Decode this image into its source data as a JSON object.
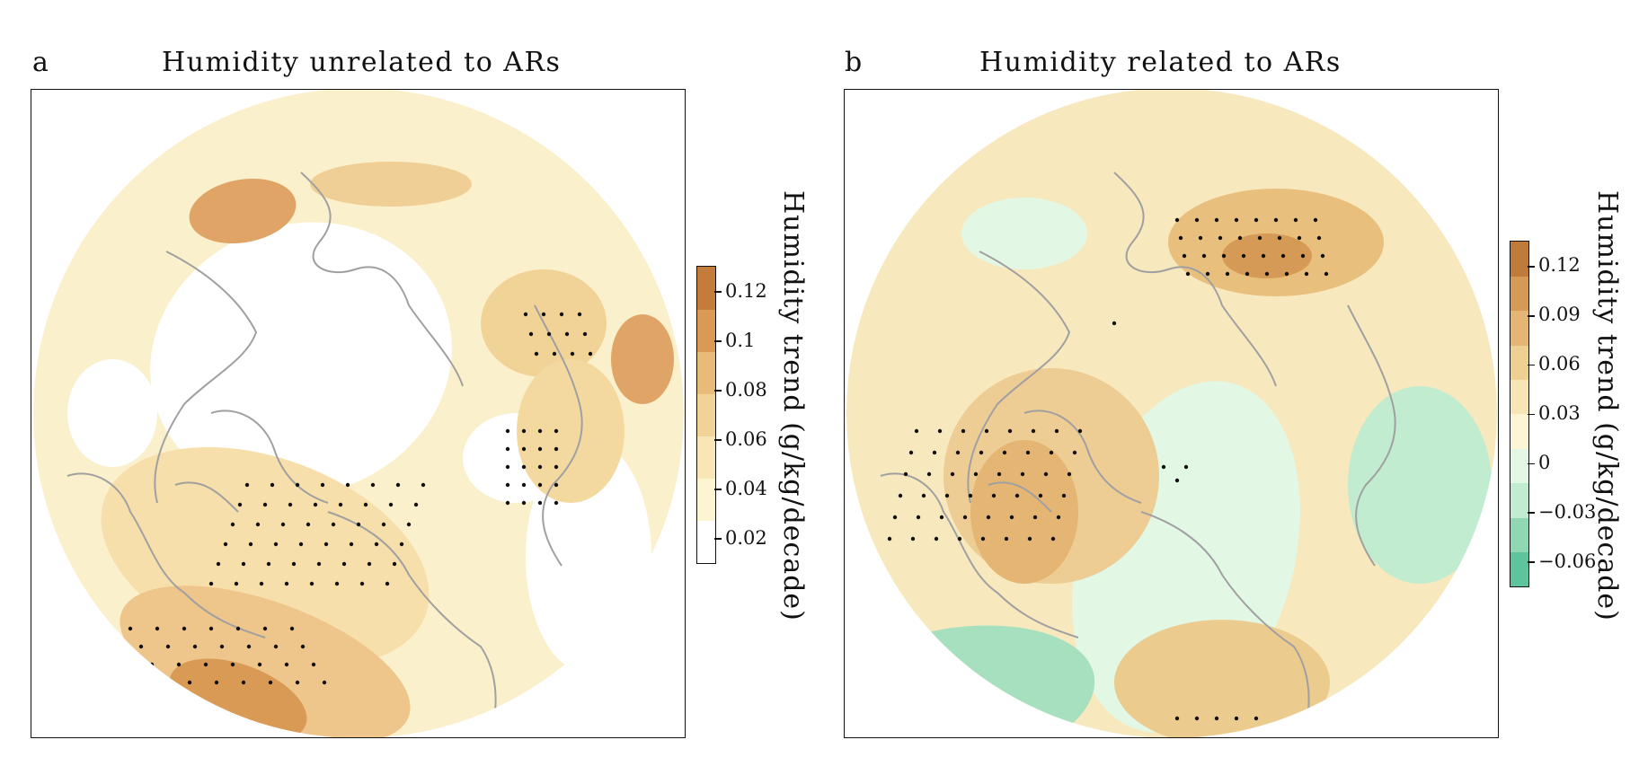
{
  "chart_data": [
    {
      "type": "heatmap",
      "panel_letter": "a",
      "title": "Humidity unrelated to ARs",
      "colorbar": {
        "label": "Humidity trend (g/kg/decade)",
        "ticks": [
          "0.02",
          "0.04",
          "0.06",
          "0.08",
          "0.1",
          "0.12"
        ],
        "tick_values": [
          0.02,
          0.04,
          0.06,
          0.08,
          0.1,
          0.12
        ],
        "range": [
          0.01,
          0.13
        ],
        "colors": [
          "#ffffff",
          "#fdf4d2",
          "#f9e6b7",
          "#f1d398",
          "#e8bc78",
          "#d99a56",
          "#c47c3c"
        ]
      },
      "projection": "north-polar-stereographic",
      "stippling": "dots mark statistically significant trends"
    },
    {
      "type": "heatmap",
      "panel_letter": "b",
      "title": "Humidity related to ARs",
      "colorbar": {
        "label": "Humidity trend (g/kg/decade)",
        "ticks": [
          "−0.06",
          "−0.03",
          "0",
          "0.03",
          "0.06",
          "0.09",
          "0.12"
        ],
        "tick_values": [
          -0.06,
          -0.03,
          0,
          0.03,
          0.06,
          0.09,
          0.12
        ],
        "range": [
          -0.075,
          0.135
        ],
        "colors": [
          "#5ec49b",
          "#8fd8b1",
          "#c2ecd0",
          "#e3f7e5",
          "#fdf6d6",
          "#f7e5b5",
          "#efd093",
          "#e4b573",
          "#d59a55",
          "#c07a39"
        ]
      },
      "projection": "north-polar-stereographic",
      "stippling": "dots mark statistically significant trends"
    }
  ]
}
